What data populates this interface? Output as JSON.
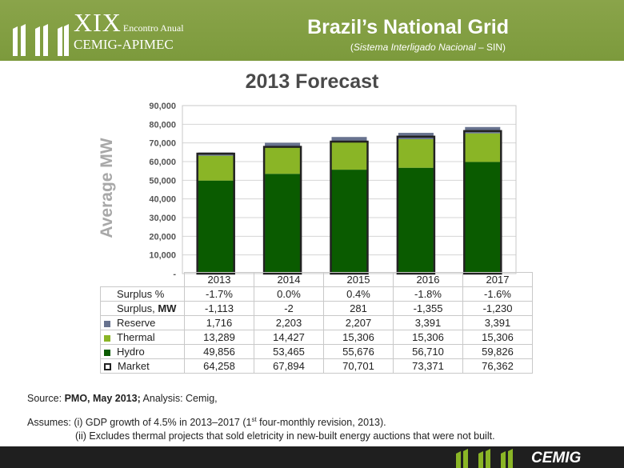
{
  "event_logo": {
    "roman": "XIX",
    "edition": "Encontro Anual",
    "line2": "CEMIG-APIMEC"
  },
  "title": "Brazil’s National Grid",
  "subtitle_italic": "Sistema Interligado Nacional",
  "subtitle_tail": "– SIN)",
  "colors": {
    "header": "#7c9a3c",
    "hydro": "#0a5b00",
    "thermal": "#8ab526",
    "reserve": "#68738f",
    "market": "#222222"
  },
  "chart_data": {
    "type": "bar",
    "title": "2013 Forecast",
    "ylabel": "Average MW",
    "ylim": [
      0,
      90000
    ],
    "yticks": [
      "-",
      "10,000",
      "20,000",
      "30,000",
      "40,000",
      "50,000",
      "60,000",
      "70,000",
      "80,000",
      "90,000"
    ],
    "categories": [
      "2013",
      "2014",
      "2015",
      "2016",
      "2017"
    ],
    "stacked_series": [
      {
        "name": "Hydro",
        "values": [
          49856,
          53465,
          55676,
          56710,
          59826
        ]
      },
      {
        "name": "Thermal",
        "values": [
          13289,
          14427,
          15306,
          15306,
          15306
        ]
      },
      {
        "name": "Reserve",
        "values": [
          1716,
          2203,
          2207,
          3391,
          3391
        ]
      }
    ],
    "market_series": {
      "name": "Market",
      "values": [
        64258,
        67894,
        70701,
        73371,
        76362
      ]
    },
    "table_rows": [
      {
        "label": "Surplus %",
        "values": [
          "-1.7%",
          "0.0%",
          "0.4%",
          "-1.8%",
          "-1.6%"
        ]
      },
      {
        "label": "Surplus, ",
        "label_bold": "MW",
        "values": [
          "-1,113",
          "-2",
          "281",
          "-1,355",
          "-1,230"
        ]
      },
      {
        "label": "Reserve",
        "values": [
          "1,716",
          "2,203",
          "2,207",
          "3,391",
          "3,391"
        ]
      },
      {
        "label": "Thermal",
        "values": [
          "13,289",
          "14,427",
          "15,306",
          "15,306",
          "15,306"
        ]
      },
      {
        "label": "Hydro",
        "values": [
          "49,856",
          "53,465",
          "55,676",
          "56,710",
          "59,826"
        ]
      },
      {
        "label": "Market",
        "values": [
          "64,258",
          "67,894",
          "70,701",
          "73,371",
          "76,362"
        ]
      }
    ],
    "grid": true
  },
  "source": {
    "label": "Source: ",
    "bold": "PMO, May 2013;",
    "tail": " Analysis: Cemig,"
  },
  "assumes": {
    "line1_pre": "Assumes:  (i)  GDP growth of 4.5% in 2013–2017 (1",
    "line1_sup": "st",
    "line1_post": " four-monthly revision, 2013).",
    "line2": "(ii)  Excludes thermal projects that sold eletricity in new-built energy auctions that were not built."
  },
  "footer_logo": "CEMIG"
}
